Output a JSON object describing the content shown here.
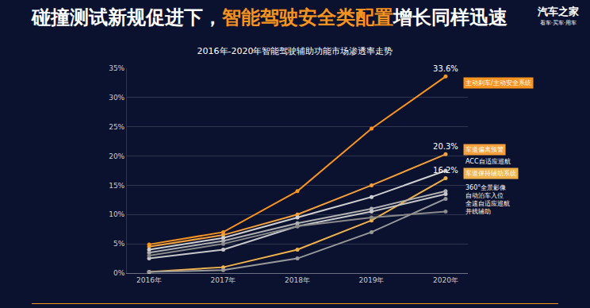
{
  "header": {
    "title": [
      {
        "text": "碰撞测试新规促进下，",
        "color": "#ffffff"
      },
      {
        "text": "智能驾驶安全类配置",
        "color": "#f7931e"
      },
      {
        "text": "增长同样迅速",
        "color": "#ffffff"
      }
    ],
    "logo": "汽车之家",
    "slogan": "看车·买车·用车"
  },
  "chart_data": {
    "type": "line",
    "title": "2016年-2020年智能驾驶辅助功能市场渗透率走势",
    "categories": [
      "2016年",
      "2017年",
      "2018年",
      "2019年",
      "2020年"
    ],
    "series": [
      {
        "name": "主动刹车/主动安全系统",
        "color": "#f7931e",
        "values": [
          4.9,
          7.0,
          14.0,
          24.7,
          33.6
        ],
        "value_labels": [
          null,
          null,
          null,
          null,
          "33.6%"
        ]
      },
      {
        "name": "车道偏离预警",
        "color": "#f5a03a",
        "values": [
          4.5,
          6.5,
          10.0,
          15.0,
          20.3
        ],
        "value_labels": [
          null,
          null,
          null,
          null,
          "20.3%"
        ]
      },
      {
        "name": "ACC自适应巡航",
        "color": "#d0d0d0",
        "values": [
          4.0,
          6.0,
          9.5,
          13.0,
          17.5
        ]
      },
      {
        "name": "车道保持辅助系统",
        "color": "#f0b24a",
        "values": [
          0.2,
          1.0,
          4.0,
          9.0,
          16.2
        ],
        "value_labels": [
          null,
          null,
          null,
          null,
          "16.2%"
        ]
      },
      {
        "name": "360°全景影像",
        "color": "#b0b0b0",
        "values": [
          3.5,
          5.5,
          8.5,
          11.0,
          14.0
        ]
      },
      {
        "name": "自动泊车入位",
        "color": "#c8c8c8",
        "values": [
          2.5,
          4.0,
          8.0,
          10.5,
          13.5
        ]
      },
      {
        "name": "全速自适应巡航",
        "color": "#9a9a9a",
        "values": [
          0.2,
          0.5,
          2.5,
          7.0,
          12.7
        ]
      },
      {
        "name": "并线辅助",
        "color": "#8a8a8a",
        "values": [
          3.0,
          5.0,
          8.0,
          9.5,
          10.5
        ]
      }
    ],
    "ylim": [
      0,
      35
    ],
    "yticks": [
      {
        "value": 0,
        "label": "0%"
      },
      {
        "value": 5,
        "label": "5%"
      },
      {
        "value": 10,
        "label": "10%"
      },
      {
        "value": 15,
        "label": "15%"
      },
      {
        "value": 20,
        "label": "20%"
      },
      {
        "value": 25,
        "label": "25%"
      },
      {
        "value": 30,
        "label": "30%"
      },
      {
        "value": 35,
        "label": "35%"
      }
    ],
    "grid": true,
    "data_labels": true,
    "marker": "circle",
    "line_style": "solid"
  }
}
